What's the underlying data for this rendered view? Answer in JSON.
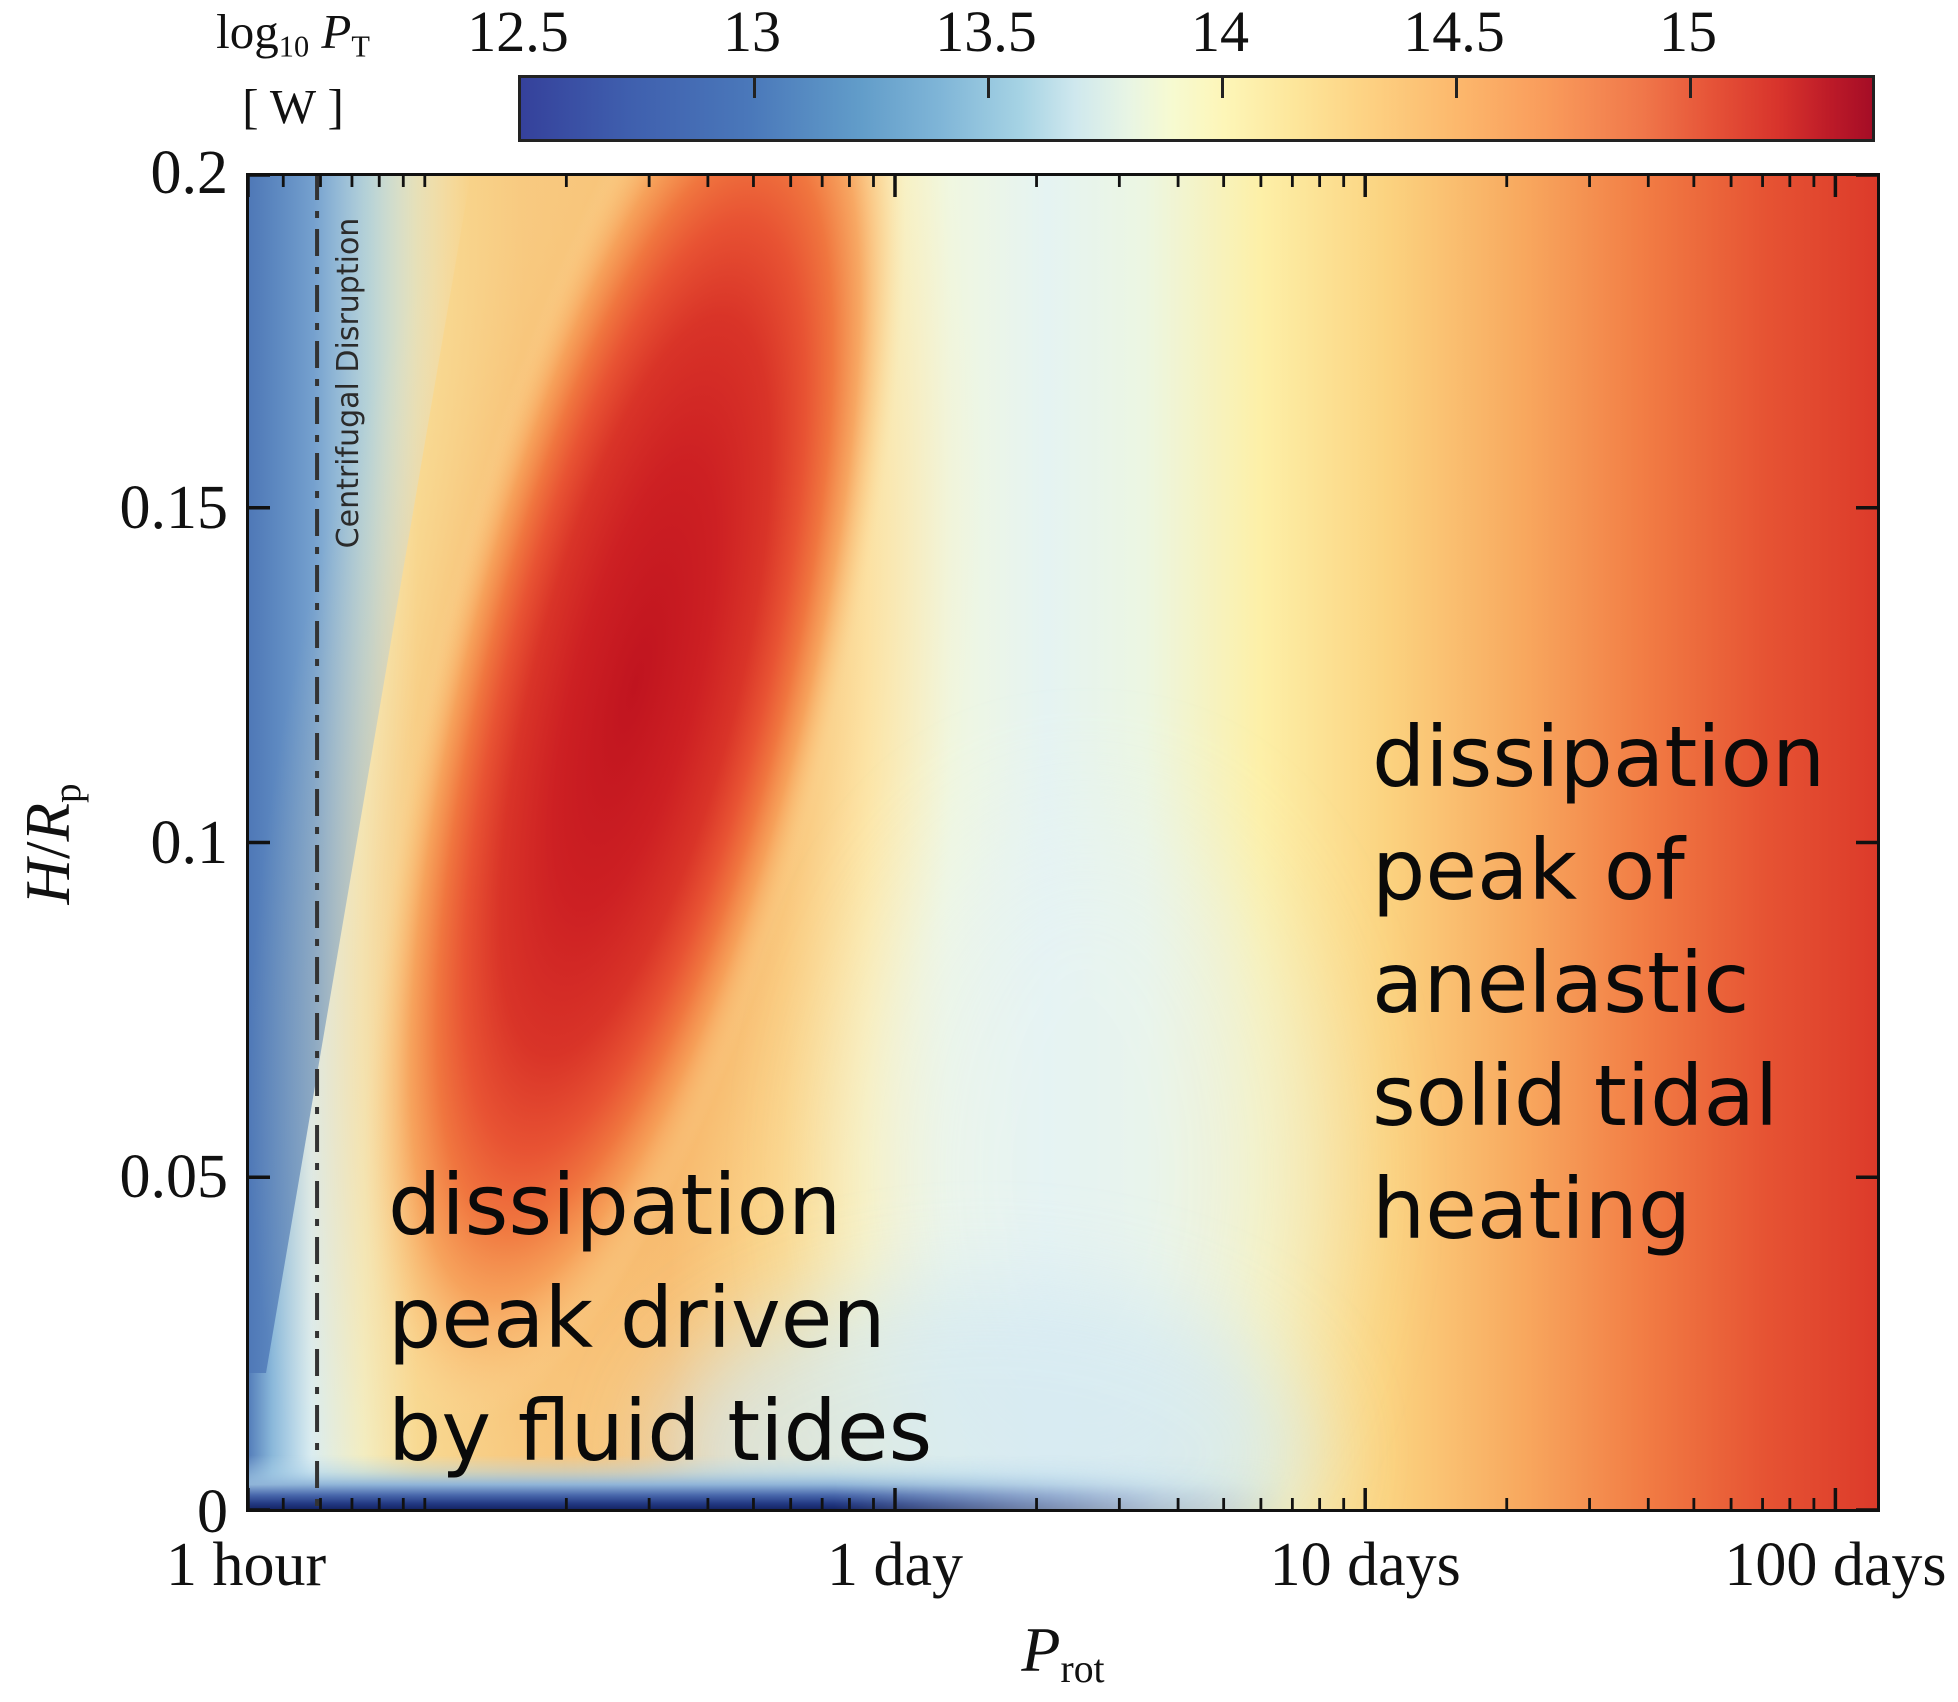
{
  "colorbar": {
    "label": {
      "prefix": "log",
      "prefix_sub": "10",
      "symbol": "P",
      "symbol_sub": "T",
      "units": "[ W ]"
    },
    "range": [
      12.5,
      15.4
    ],
    "ticks": [
      {
        "label": "12.5",
        "value": 12.5
      },
      {
        "label": "13",
        "value": 13
      },
      {
        "label": "13.5",
        "value": 13.5
      },
      {
        "label": "14",
        "value": 14
      },
      {
        "label": "14.5",
        "value": 14.5
      },
      {
        "label": "15",
        "value": 15
      }
    ],
    "gradient_stops": [
      [
        0,
        "#35419b"
      ],
      [
        0.08,
        "#3f5fae"
      ],
      [
        0.17,
        "#4a78ba"
      ],
      [
        0.25,
        "#619cc9"
      ],
      [
        0.31,
        "#7fb5d7"
      ],
      [
        0.37,
        "#a6d3e4"
      ],
      [
        0.41,
        "#cfe8ee"
      ],
      [
        0.45,
        "#e8f5e4"
      ],
      [
        0.48,
        "#f6fad2"
      ],
      [
        0.52,
        "#fdf6b8"
      ],
      [
        0.57,
        "#fde79c"
      ],
      [
        0.62,
        "#fdd485"
      ],
      [
        0.69,
        "#fcb96d"
      ],
      [
        0.76,
        "#f99b5b"
      ],
      [
        0.83,
        "#f0774a"
      ],
      [
        0.88,
        "#e65438"
      ],
      [
        0.93,
        "#d8342c"
      ],
      [
        0.97,
        "#bc1a28"
      ],
      [
        1,
        "#a50d26"
      ]
    ]
  },
  "axes": {
    "x": {
      "label_symbol": "P",
      "label_sub": "rot",
      "scale": "log",
      "unit": "days",
      "range_days": [
        0.0417,
        124
      ],
      "major_ticks": [
        {
          "label": "1 hour",
          "days": 0.0416667
        },
        {
          "label": "1 day",
          "days": 1
        },
        {
          "label": "10 days",
          "days": 10
        },
        {
          "label": "100 days",
          "days": 100
        }
      ]
    },
    "y": {
      "label_num": "H",
      "label_sep": "/",
      "label_den": "R",
      "label_den_sub": "p",
      "range": [
        0,
        0.2
      ],
      "major_ticks": [
        {
          "label": "0.2",
          "value": 0.2
        },
        {
          "label": "0.15",
          "value": 0.15
        },
        {
          "label": "0.1",
          "value": 0.1
        },
        {
          "label": "0.05",
          "value": 0.05
        },
        {
          "label": "0",
          "value": 0
        }
      ]
    }
  },
  "annotations": {
    "fluid": {
      "lines": [
        "dissipation",
        "peak driven",
        "by fluid tides"
      ]
    },
    "anelastic": {
      "lines": [
        "dissipation",
        "peak of",
        "anelastic",
        "solid tidal",
        "heating"
      ]
    },
    "centrifugal": {
      "label": "Centrifugal Disruption",
      "days": 0.059,
      "line_style": "dash-dot",
      "color": "#333333"
    }
  },
  "chart_data": {
    "type": "heatmap",
    "title": "",
    "colorbar_label": "log10 P_T [W]",
    "colorbar_ticks": [
      12.5,
      13,
      13.5,
      14,
      14.5,
      15
    ],
    "colorbar_range": [
      12.5,
      15.4
    ],
    "xlabel": "P_rot",
    "x_scale": "log",
    "x_tick_labels": [
      "1 hour",
      "1 day",
      "10 days",
      "100 days"
    ],
    "x_range_days": [
      0.0417,
      124
    ],
    "ylabel": "H/R_p",
    "y_range": [
      0,
      0.2
    ],
    "y_ticks": [
      0,
      0.05,
      0.1,
      0.15,
      0.2
    ],
    "grid": false,
    "x_sample_days": [
      0.0417,
      0.125,
      0.25,
      0.5,
      1,
      2,
      3,
      10,
      30,
      100
    ],
    "y_sample": [
      0.001,
      0.05,
      0.1,
      0.15,
      0.2
    ],
    "log10_power_grid_estimate": [
      [
        12.5,
        12.5,
        12.5,
        12.6,
        12.7,
        13.3,
        13.6,
        14.0,
        14.5,
        15.0
      ],
      [
        13.3,
        14.2,
        15.1,
        15.2,
        14.4,
        13.95,
        13.8,
        14.0,
        14.5,
        15.05
      ],
      [
        13.1,
        13.95,
        14.9,
        15.35,
        14.6,
        14.0,
        13.85,
        14.0,
        14.5,
        15.05
      ],
      [
        13.0,
        13.9,
        14.8,
        15.35,
        14.5,
        14.0,
        13.9,
        14.05,
        14.5,
        15.0
      ],
      [
        12.9,
        13.9,
        15.0,
        15.3,
        14.3,
        14.0,
        13.9,
        14.05,
        14.5,
        15.0
      ]
    ],
    "features": [
      "dark-red ridge: dissipation peak driven by fluid tides near P_rot ~ 0.5 day, log10 P_T ~ 15.3",
      "pale-blue dissipation minimum near P_rot ~ 2-3 days, log10 P_T ~ 13.8",
      "anelastic solid tidal heating peak strengthens toward P_rot >= 100 days, log10 P_T ~ 15",
      "very low dissipation (dark navy strip) as H/R_p -> 0 for P_rot <~ 1 day",
      "vertical dash-dot line: centrifugal disruption limit at P_rot ~ 1.4 hours"
    ],
    "legend_position": "horizontal colorbar on top"
  },
  "heatmap_style": {
    "base_stops": [
      [
        0,
        "#4e77b6"
      ],
      [
        0.016,
        "#8ab8da"
      ],
      [
        0.04,
        "#d9edf3"
      ],
      [
        0.072,
        "#f2f0c6"
      ],
      [
        0.105,
        "#f8dc94"
      ],
      [
        0.17,
        "#f8c87d"
      ],
      [
        0.26,
        "#f7bf72"
      ],
      [
        0.33,
        "#fbd98d"
      ],
      [
        0.38,
        "#fdf0b5"
      ],
      [
        0.43,
        "#f0f7e0"
      ],
      [
        0.49,
        "#e5f3f2"
      ],
      [
        0.55,
        "#ecf6e2"
      ],
      [
        0.62,
        "#fdf0a8"
      ],
      [
        0.7,
        "#fbd27f"
      ],
      [
        0.78,
        "#f8a95f"
      ],
      [
        0.86,
        "#f17a43"
      ],
      [
        0.93,
        "#e65333"
      ],
      [
        1,
        "#dc3a2a"
      ]
    ],
    "wedge_stops": [
      [
        0,
        "#4e77b6"
      ],
      [
        0.3,
        "rgba(106,152,202,0.9)"
      ],
      [
        0.55,
        "rgba(152,196,226,0.65)"
      ],
      [
        0.76,
        "rgba(202,229,241,0.38)"
      ],
      [
        1,
        "rgba(236,246,249,0)"
      ]
    ],
    "ridge_stops": [
      [
        0,
        "#c0141f"
      ],
      [
        0.3,
        "#cd2023"
      ],
      [
        0.5,
        "#d93428"
      ],
      [
        0.63,
        "#e85333"
      ],
      [
        0.73,
        "#f0763f"
      ],
      [
        0.83,
        "rgba(246,153,83,0.8)"
      ],
      [
        0.92,
        "rgba(250,190,120,0.4)"
      ],
      [
        1,
        "rgba(252,220,160,0)"
      ]
    ],
    "halo_stops": [
      [
        0,
        "rgba(243,150,80,0.85)"
      ],
      [
        0.5,
        "rgba(246,170,95,0.5)"
      ],
      [
        0.75,
        "rgba(250,200,130,0.25)"
      ],
      [
        1,
        "rgba(252,225,170,0)"
      ]
    ],
    "strip_stops": [
      [
        0,
        "rgba(190,220,238,0)"
      ],
      [
        0.3,
        "rgba(170,208,232,0.5)"
      ],
      [
        0.52,
        "#8fb4d8"
      ],
      [
        0.7,
        "#4a69ad"
      ],
      [
        0.85,
        "#233a84"
      ],
      [
        1,
        "#0d1a55"
      ]
    ],
    "strip_mask_stops": [
      [
        0,
        "#ffffff"
      ],
      [
        0.36,
        "#ffffff"
      ],
      [
        0.46,
        "#999999"
      ],
      [
        0.56,
        "#333333"
      ],
      [
        0.64,
        "#000000"
      ],
      [
        1,
        "#000000"
      ]
    ],
    "trough_color": "#d4e9f2",
    "trough2_color": "#e6f3f5",
    "dashed_line_color": "#333333",
    "axis_color": "#111111"
  }
}
